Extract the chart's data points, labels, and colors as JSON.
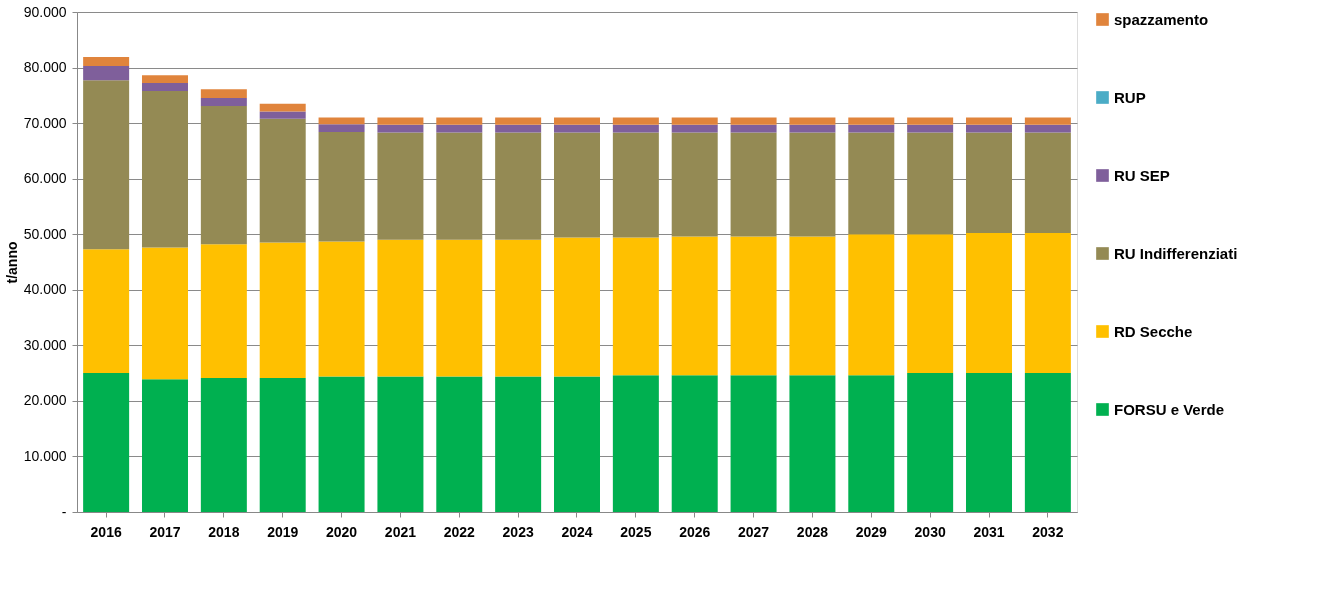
{
  "chart_data": {
    "type": "bar",
    "stacked": true,
    "ylabel": "t/anno",
    "categories": [
      "2016",
      "2017",
      "2018",
      "2019",
      "2020",
      "2021",
      "2022",
      "2023",
      "2024",
      "2025",
      "2026",
      "2027",
      "2028",
      "2029",
      "2030",
      "2031",
      "2032"
    ],
    "series": [
      {
        "name": "FORSU e Verde",
        "color": "#00b050",
        "values": [
          25000,
          23900,
          24100,
          24100,
          24400,
          24400,
          24400,
          24400,
          24400,
          24600,
          24600,
          24600,
          24600,
          24600,
          25000,
          25000,
          25000
        ]
      },
      {
        "name": "RD Secche",
        "color": "#ffc000",
        "values": [
          22300,
          23700,
          24100,
          24400,
          24300,
          24600,
          24600,
          24600,
          25000,
          24800,
          25000,
          25000,
          25000,
          25400,
          25000,
          25200,
          25200
        ]
      },
      {
        "name": "RU Indifferenziati",
        "color": "#948a54",
        "values": [
          30400,
          28200,
          24900,
          22300,
          19700,
          19300,
          19300,
          19300,
          18900,
          18900,
          18700,
          18700,
          18700,
          18300,
          18300,
          18100,
          18100
        ]
      },
      {
        "name": "RU SEP",
        "color": "#7f5f9b",
        "values": [
          2600,
          1400,
          1400,
          1300,
          1400,
          1400,
          1400,
          1400,
          1400,
          1400,
          1400,
          1400,
          1400,
          1400,
          1400,
          1400,
          1400
        ]
      },
      {
        "name": "RUP",
        "color": "#4bacc6",
        "values": [
          0,
          0,
          0,
          0,
          0,
          0,
          0,
          0,
          0,
          0,
          0,
          0,
          0,
          0,
          0,
          0,
          0
        ]
      },
      {
        "name": "spazzamento",
        "color": "#e0843c",
        "values": [
          1600,
          1400,
          1600,
          1400,
          1200,
          1300,
          1300,
          1300,
          1300,
          1300,
          1300,
          1300,
          1300,
          1300,
          1300,
          1300,
          1300
        ]
      }
    ],
    "ylim": [
      0,
      90000
    ],
    "yticks": [
      {
        "value": 0,
        "label": "-"
      },
      {
        "value": 10000,
        "label": "10.000"
      },
      {
        "value": 20000,
        "label": "20.000"
      },
      {
        "value": 30000,
        "label": "30.000"
      },
      {
        "value": 40000,
        "label": "40.000"
      },
      {
        "value": 50000,
        "label": "50.000"
      },
      {
        "value": 60000,
        "label": "60.000"
      },
      {
        "value": 70000,
        "label": "70.000"
      },
      {
        "value": 80000,
        "label": "80.000"
      },
      {
        "value": 90000,
        "label": "90.000"
      }
    ],
    "grid": "y",
    "legend": "right"
  }
}
